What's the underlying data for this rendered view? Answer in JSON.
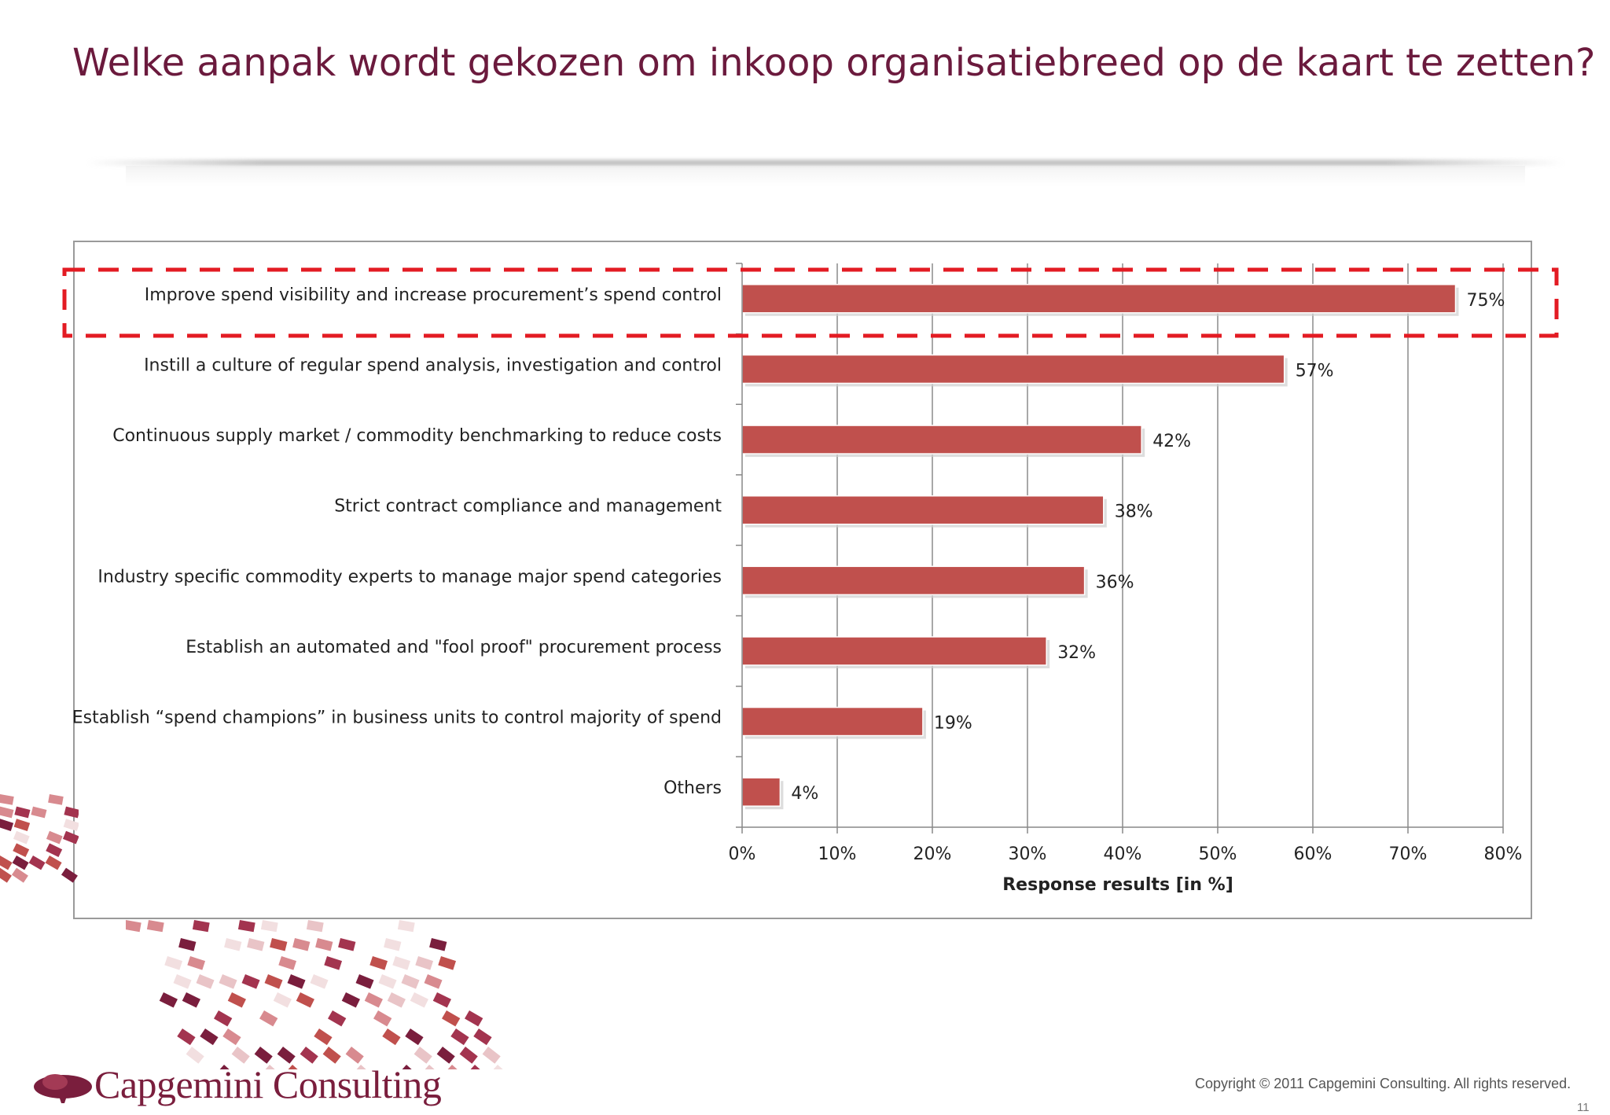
{
  "slide": {
    "title": "Welke aanpak wordt gekozen om inkoop organisatiebreed op de kaart te zetten?",
    "copyright": "Copyright © 2011 Capgemini Consulting. All rights reserved.",
    "page_number": "11",
    "logo_text": "Capgemini Consulting"
  },
  "chart_data": {
    "type": "bar",
    "orientation": "horizontal",
    "categories": [
      "Improve spend visibility and increase procurement’s spend control",
      "Instill a culture of regular spend analysis, investigation and control",
      "Continuous supply market / commodity benchmarking to reduce costs",
      "Strict contract compliance and management",
      "Industry specific commodity experts to manage major spend categories",
      "Establish an automated and \"fool proof\" procurement process",
      "Establish “spend champions” in business units to control majority of spend",
      "Others"
    ],
    "values": [
      75,
      57,
      42,
      38,
      36,
      32,
      19,
      4
    ],
    "data_labels": [
      "75%",
      "57%",
      "42%",
      "38%",
      "36%",
      "32%",
      "19%",
      "4%"
    ],
    "x_ticks": [
      "0%",
      "10%",
      "20%",
      "30%",
      "40%",
      "50%",
      "60%",
      "70%",
      "80%"
    ],
    "xlim": [
      0,
      80
    ],
    "xlabel": "Response results [in %]",
    "grid": true,
    "highlighted_category_index": 0,
    "colors": {
      "bar": "#c0504d",
      "highlight_box": "#e31b23",
      "grid": "#8c8c8c"
    }
  }
}
